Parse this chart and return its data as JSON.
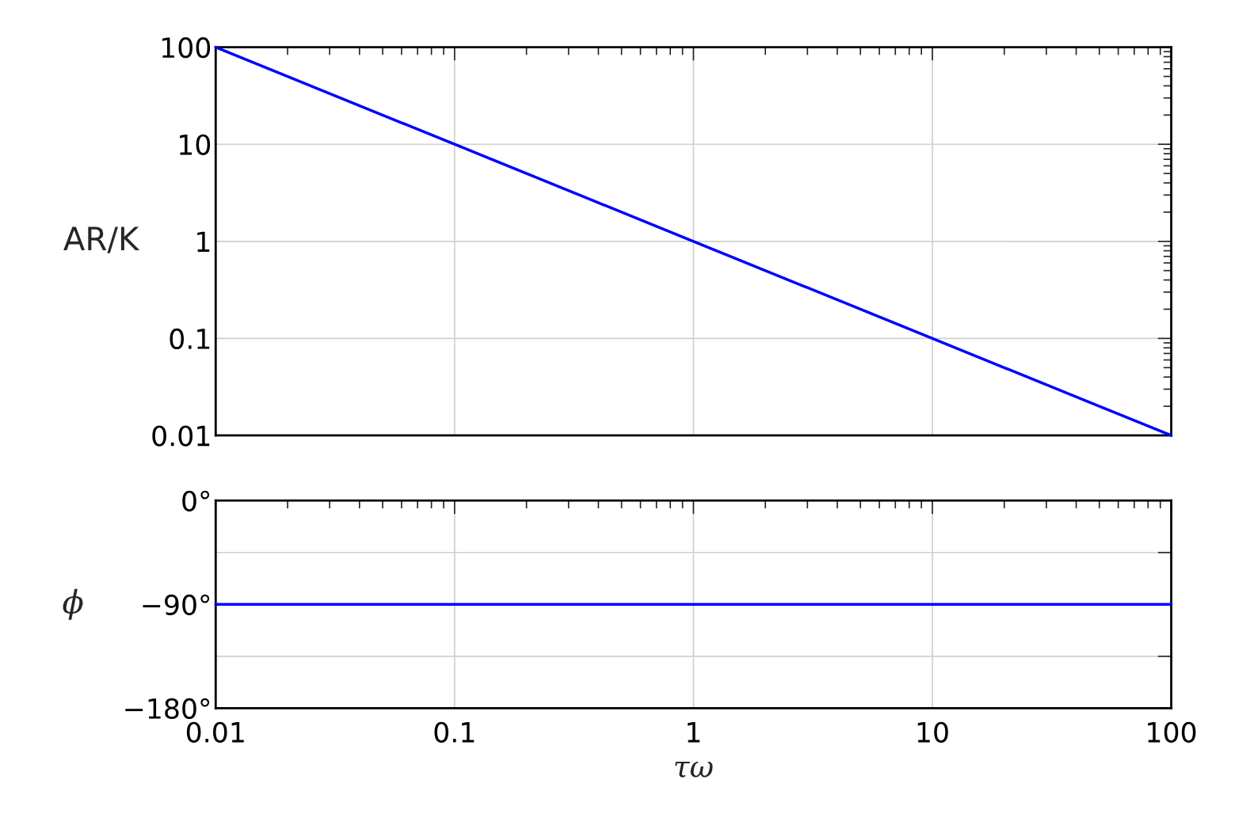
{
  "chart_data": [
    {
      "type": "line",
      "ylabel": "AR/K",
      "log": "xy",
      "xlim": [
        0.01,
        100
      ],
      "ylim": [
        0.01,
        100
      ],
      "xticks": [
        0.01,
        0.1,
        1,
        10,
        100
      ],
      "yticks": [
        0.01,
        0.1,
        1,
        10,
        100
      ],
      "tick_labels": "y",
      "grid": true,
      "series": [
        {
          "color": "#0000ff",
          "x": [
            0.01,
            0.1,
            1,
            10,
            100
          ],
          "values": [
            100,
            10,
            1,
            0.1,
            0.01
          ]
        }
      ]
    },
    {
      "type": "line",
      "xlabel": "τω",
      "ylabel": "ϕ",
      "log": "x",
      "xlim": [
        0.01,
        100
      ],
      "ylim": [
        -180,
        0
      ],
      "xticks": [
        0.01,
        0.1,
        1,
        10,
        100
      ],
      "yticks": [
        {
          "value": -180,
          "label": "−180°"
        },
        {
          "value": -135,
          "label": null
        },
        {
          "value": -90,
          "label": "−90°"
        },
        {
          "value": -45,
          "label": null
        },
        {
          "value": 0,
          "label": "0°"
        }
      ],
      "grid": true,
      "series": [
        {
          "color": "#0000ff",
          "x": [
            0.01,
            0.1,
            1,
            10,
            100
          ],
          "values": [
            -90,
            -90,
            -90,
            -90,
            -90
          ]
        }
      ]
    }
  ]
}
